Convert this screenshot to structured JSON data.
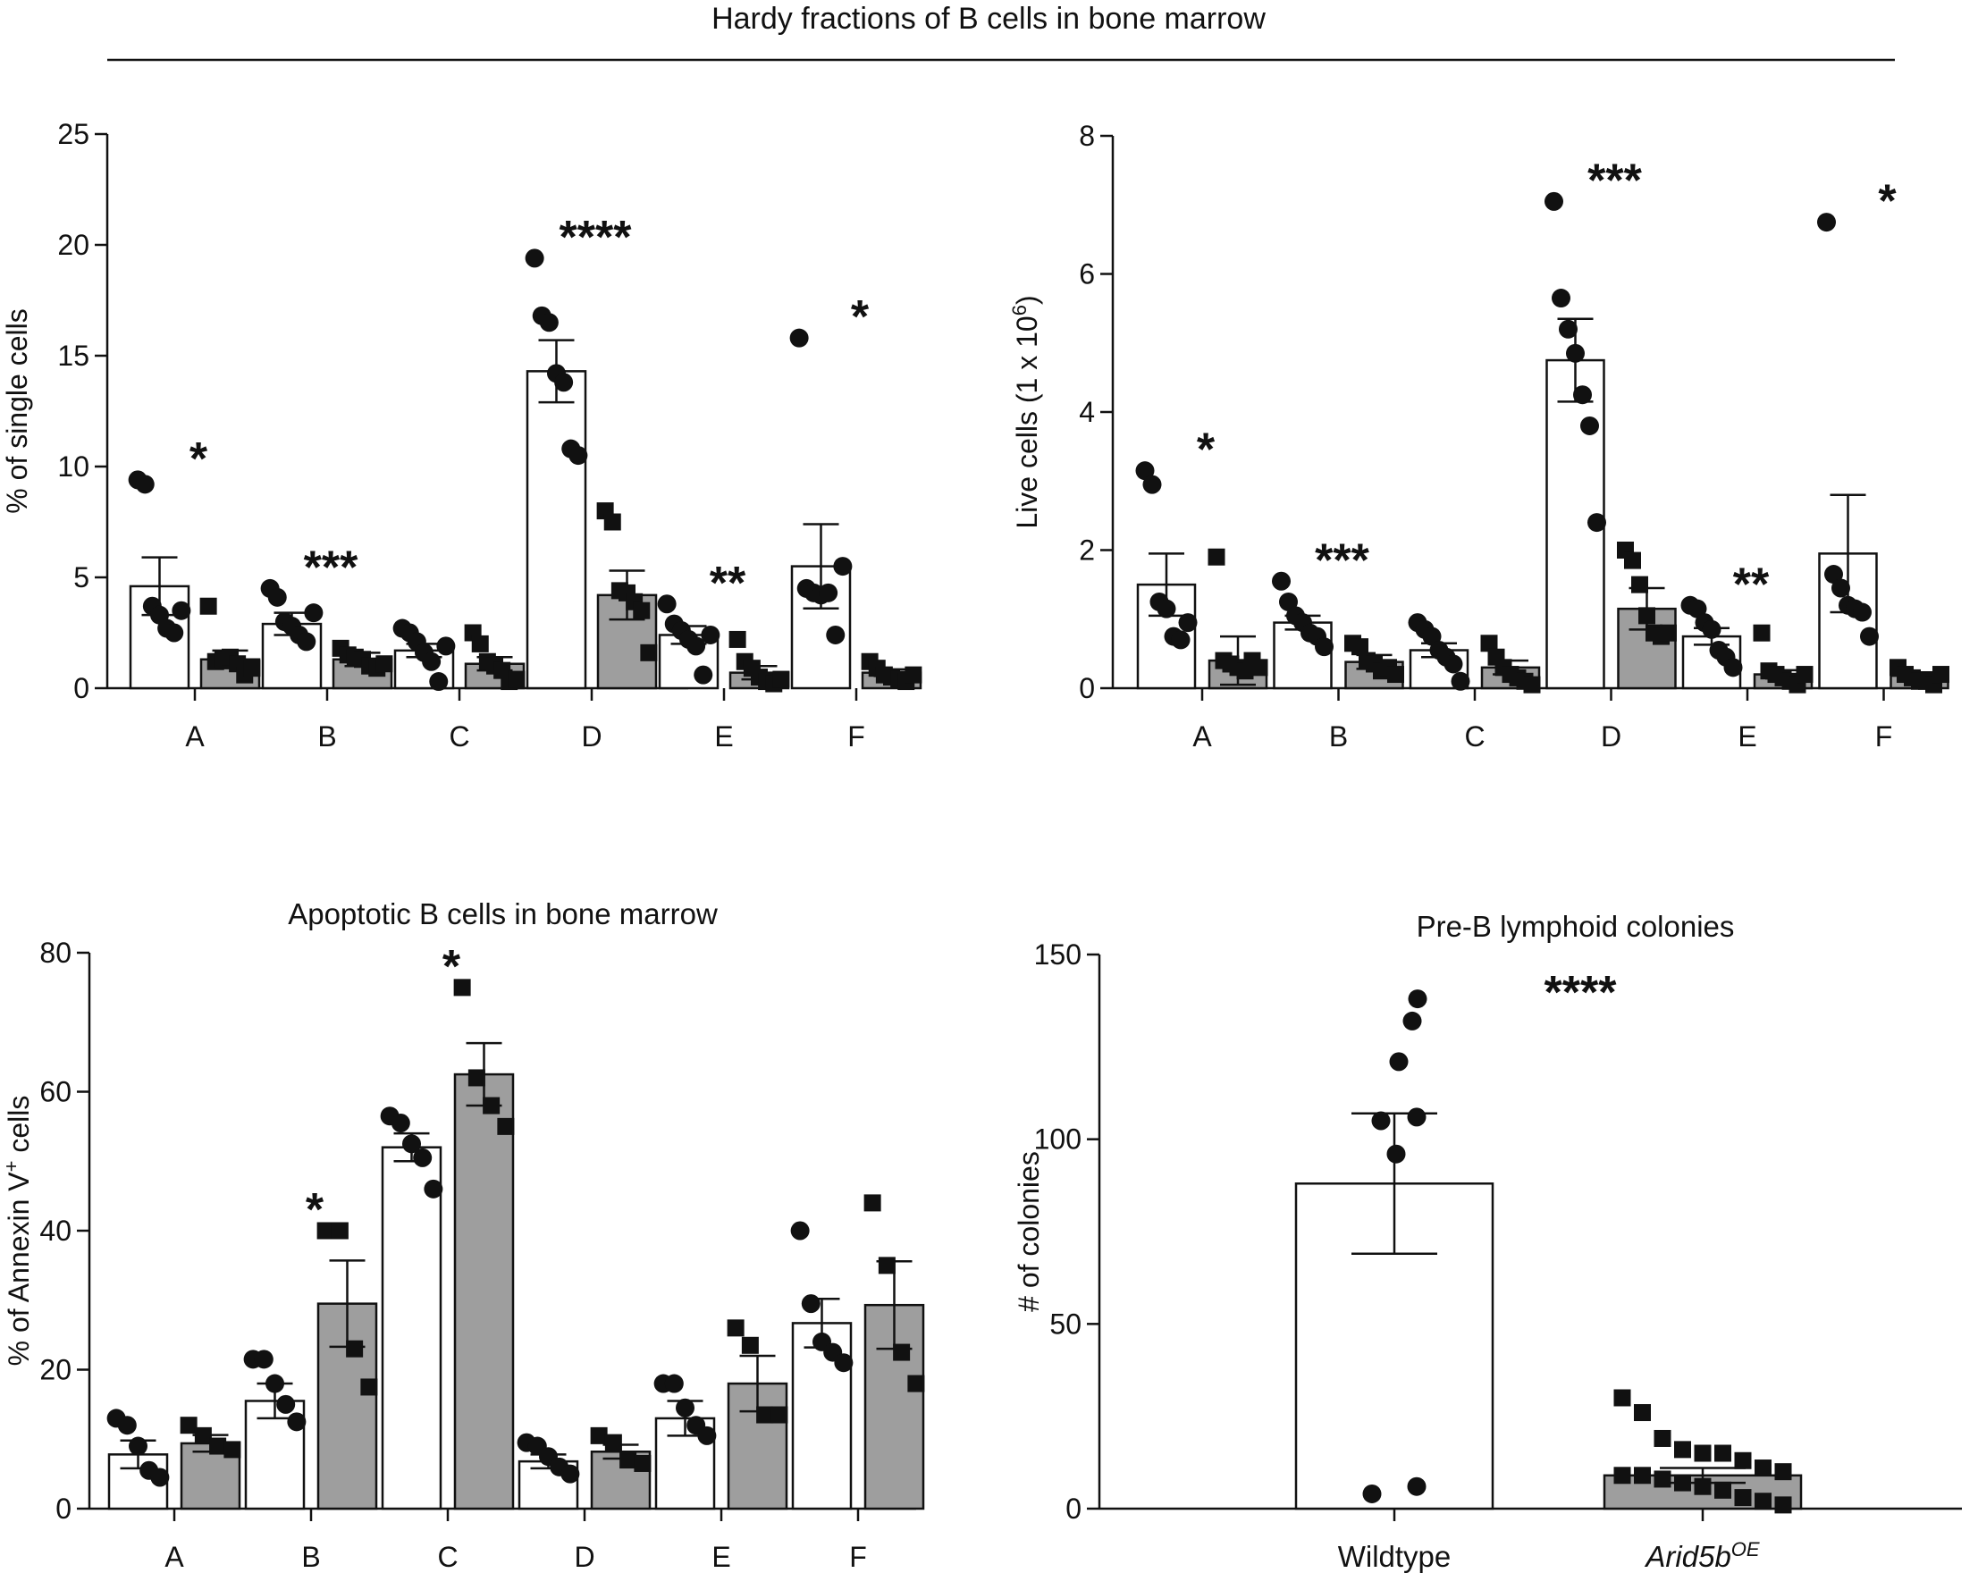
{
  "figure": {
    "header": "Hardy fractions of B cells in bone marrow"
  },
  "chart_data": [
    {
      "type": "bar",
      "title": "",
      "ylabel": "% of single cells",
      "categories": [
        "A",
        "B",
        "C",
        "D",
        "E",
        "F"
      ],
      "yticks": [
        "0",
        "5",
        "10",
        "15",
        "20",
        "25"
      ],
      "ylim": [
        0,
        25
      ],
      "grid": false,
      "colors": {
        "wildtype": "#ffffff",
        "arid5b": "#9e9e9e",
        "ink": "#111111"
      },
      "series": [
        {
          "marker": "circle",
          "means": [
            4.6,
            2.9,
            1.7,
            14.3,
            2.4,
            5.5
          ],
          "sem": [
            1.3,
            0.5,
            0.3,
            1.4,
            0.4,
            1.9
          ],
          "points": [
            [
              9.4,
              9.2,
              3.7,
              3.3,
              2.7,
              2.5,
              3.5
            ],
            [
              4.5,
              4.1,
              3.0,
              2.8,
              2.4,
              2.1,
              3.4
            ],
            [
              2.7,
              2.5,
              2.1,
              1.6,
              1.2,
              0.3,
              1.9
            ],
            [
              19.4,
              16.8,
              16.5,
              14.2,
              13.8,
              10.8,
              10.5
            ],
            [
              3.8,
              2.9,
              2.6,
              2.2,
              1.9,
              0.6,
              2.4
            ],
            [
              15.8,
              4.5,
              4.3,
              4.2,
              4.3,
              2.4,
              5.5
            ]
          ]
        },
        {
          "marker": "square",
          "means": [
            1.3,
            1.3,
            1.1,
            4.2,
            0.7,
            0.7
          ],
          "sem": [
            0.4,
            0.3,
            0.3,
            1.1,
            0.3,
            0.15
          ],
          "points": [
            [
              3.7,
              1.2,
              1.3,
              1.4,
              1.1,
              0.6,
              0.9
            ],
            [
              1.8,
              1.5,
              1.4,
              1.3,
              1.0,
              0.9,
              1.1
            ],
            [
              2.5,
              2.0,
              1.2,
              1.0,
              0.8,
              0.3,
              0.4
            ],
            [
              8.0,
              7.5,
              4.4,
              4.3,
              3.9,
              3.5,
              1.6
            ],
            [
              2.2,
              1.2,
              0.9,
              0.5,
              0.3,
              0.2,
              0.4
            ],
            [
              1.2,
              0.9,
              0.6,
              0.5,
              0.4,
              0.3,
              0.6
            ]
          ]
        }
      ],
      "significance": [
        "*",
        "***",
        "",
        "****",
        "**",
        "*"
      ]
    },
    {
      "type": "bar",
      "title": "",
      "ylabel": "Live cells (1 x 10",
      "ylabel_sup": "6",
      "ylabel_close": ")",
      "categories": [
        "A",
        "B",
        "C",
        "D",
        "E",
        "F"
      ],
      "yticks": [
        "0",
        "2",
        "4",
        "6",
        "8"
      ],
      "ylim": [
        0,
        8
      ],
      "grid": false,
      "colors": {
        "wildtype": "#ffffff",
        "arid5b": "#9e9e9e",
        "ink": "#111111"
      },
      "series": [
        {
          "marker": "circle",
          "means": [
            1.5,
            0.95,
            0.55,
            4.75,
            0.75,
            1.95
          ],
          "sem": [
            0.45,
            0.1,
            0.1,
            0.6,
            0.12,
            0.85
          ],
          "points": [
            [
              3.15,
              2.95,
              1.25,
              1.15,
              0.75,
              0.7,
              0.95
            ],
            [
              1.55,
              1.25,
              1.05,
              0.95,
              0.8,
              0.75,
              0.6
            ],
            [
              0.95,
              0.85,
              0.75,
              0.55,
              0.45,
              0.35,
              0.1
            ],
            [
              7.05,
              5.65,
              5.2,
              4.85,
              4.25,
              3.8,
              2.4
            ],
            [
              1.2,
              1.15,
              0.95,
              0.85,
              0.55,
              0.45,
              0.3
            ],
            [
              6.75,
              1.65,
              1.45,
              1.2,
              1.15,
              1.1,
              0.75
            ]
          ]
        },
        {
          "marker": "square",
          "means": [
            0.4,
            0.38,
            0.3,
            1.15,
            0.2,
            0.18
          ],
          "sem": [
            0.35,
            0.1,
            0.1,
            0.3,
            0.06,
            0.05
          ],
          "points": [
            [
              1.9,
              0.4,
              0.35,
              0.3,
              0.25,
              0.4,
              0.3
            ],
            [
              0.65,
              0.6,
              0.4,
              0.35,
              0.25,
              0.3,
              0.2
            ],
            [
              0.65,
              0.45,
              0.3,
              0.2,
              0.15,
              0.1,
              0.05
            ],
            [
              2.0,
              1.85,
              1.5,
              1.05,
              0.8,
              0.75,
              0.8
            ],
            [
              0.8,
              0.25,
              0.2,
              0.15,
              0.1,
              0.05,
              0.2
            ],
            [
              0.3,
              0.2,
              0.15,
              0.1,
              0.1,
              0.05,
              0.2
            ]
          ]
        }
      ],
      "significance": [
        "*",
        "***",
        "",
        "***",
        "**",
        "*"
      ]
    },
    {
      "type": "bar",
      "title": "Apoptotic B cells in bone marrow",
      "ylabel": "% of Annexin V",
      "ylabel_sup": "+",
      "ylabel_close": " cells",
      "categories": [
        "A",
        "B",
        "C",
        "D",
        "E",
        "F"
      ],
      "yticks": [
        "0",
        "20",
        "40",
        "60",
        "80"
      ],
      "ylim": [
        0,
        80
      ],
      "grid": false,
      "colors": {
        "wildtype": "#ffffff",
        "arid5b": "#9e9e9e",
        "ink": "#111111"
      },
      "series": [
        {
          "marker": "circle",
          "means": [
            7.8,
            15.5,
            52.0,
            6.8,
            13.0,
            26.7
          ],
          "sem": [
            2.0,
            2.5,
            2.0,
            1.0,
            2.5,
            3.5
          ],
          "points": [
            [
              13.0,
              12.0,
              9.0,
              5.5,
              4.5
            ],
            [
              21.5,
              21.5,
              18.0,
              15.0,
              12.5
            ],
            [
              56.5,
              55.5,
              52.5,
              50.5,
              46.0
            ],
            [
              9.5,
              9.0,
              7.5,
              6.0,
              5.0
            ],
            [
              18.0,
              18.0,
              14.5,
              12.0,
              10.5
            ],
            [
              40.0,
              29.5,
              24.0,
              22.5,
              21.0
            ]
          ]
        },
        {
          "marker": "square",
          "means": [
            9.4,
            29.5,
            62.5,
            8.2,
            18.0,
            29.3
          ],
          "sem": [
            1.2,
            6.2,
            4.5,
            1.0,
            4.0,
            6.3
          ],
          "points": [
            [
              12.0,
              10.5,
              9.0,
              8.5
            ],
            [
              40.0,
              40.0,
              23.0,
              17.5
            ],
            [
              75.0,
              62.0,
              58.0,
              55.0
            ],
            [
              10.5,
              9.5,
              7.0,
              6.5
            ],
            [
              26.0,
              23.5,
              13.5,
              13.5
            ],
            [
              44.0,
              35.0,
              22.5,
              18.0
            ]
          ]
        }
      ],
      "significance": [
        "",
        "*",
        "*",
        "",
        "",
        ""
      ]
    },
    {
      "type": "bar",
      "title": "Pre-B lymphoid colonies",
      "ylabel": "# of colonies",
      "categories": [
        "Wildtype",
        "Arid5b"
      ],
      "category_sup": [
        "",
        "OE"
      ],
      "category_italic": [
        false,
        true
      ],
      "yticks": [
        "0",
        "50",
        "100",
        "150"
      ],
      "ylim": [
        0,
        150
      ],
      "grid": false,
      "colors": {
        "wildtype": "#ffffff",
        "arid5b": "#9e9e9e",
        "ink": "#111111"
      },
      "values": [
        88,
        9
      ],
      "sem": [
        19,
        2
      ],
      "points": [
        [
          138,
          132,
          121,
          106,
          105,
          96,
          6,
          4
        ],
        [
          30,
          26,
          19,
          16,
          15,
          15,
          13,
          11,
          10,
          9,
          9,
          8,
          7,
          6,
          5,
          3,
          2,
          1
        ]
      ],
      "significance": "****"
    }
  ]
}
